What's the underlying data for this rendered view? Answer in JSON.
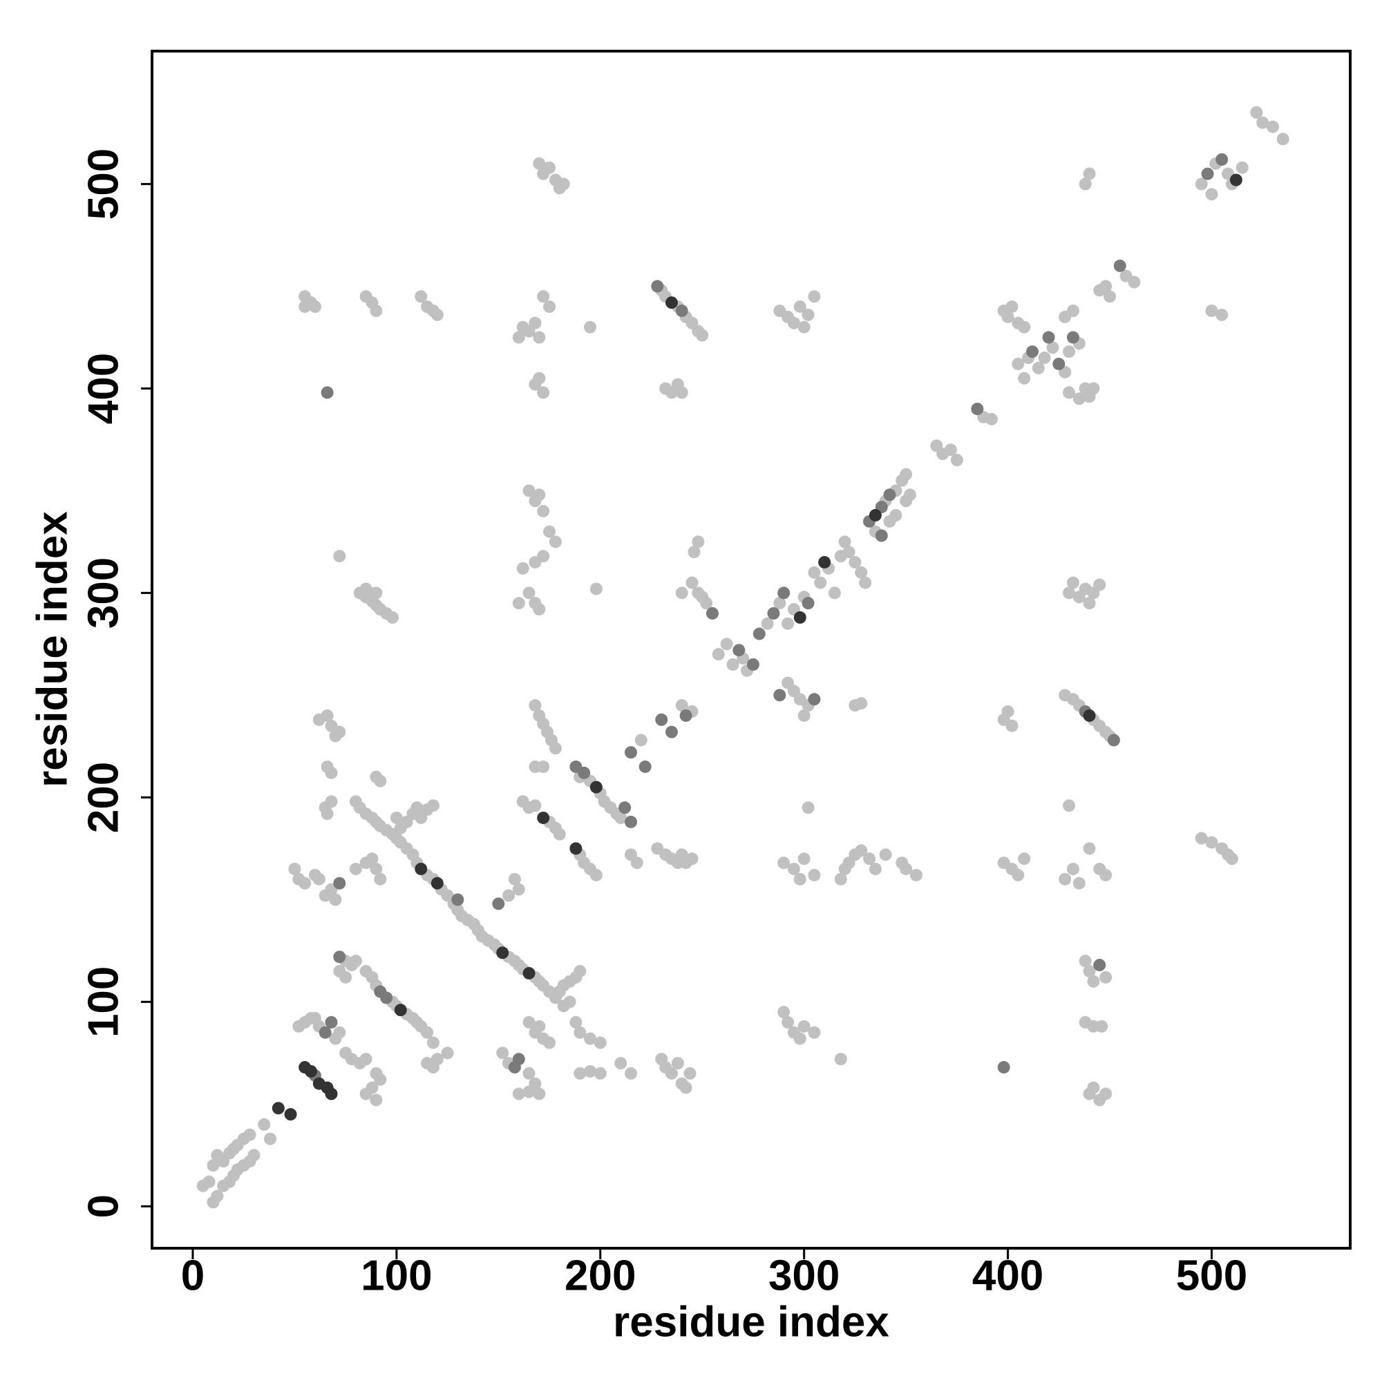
{
  "chart_data": {
    "type": "scatter",
    "xlabel": "residue index",
    "ylabel": "residue index",
    "xlim": [
      -20,
      568
    ],
    "ylim": [
      -20.5,
      565
    ],
    "xticks": [
      0,
      100,
      200,
      300,
      400,
      500
    ],
    "yticks": [
      0,
      100,
      200,
      300,
      400,
      500
    ],
    "series": [
      {
        "color": "#c0c0c0",
        "x": [
          5,
          8,
          10,
          12,
          15,
          18,
          20,
          22,
          25,
          28,
          10,
          12,
          15,
          18,
          20,
          22,
          25,
          28,
          30,
          35,
          38,
          52,
          55,
          58,
          60,
          62,
          70,
          72,
          75,
          78,
          82,
          85,
          90,
          92,
          85,
          88,
          90,
          50,
          52,
          55,
          60,
          62,
          65,
          68,
          70,
          66,
          62,
          68,
          70,
          72,
          66,
          68,
          65,
          66,
          68,
          72,
          75,
          78,
          72,
          75,
          80,
          85,
          88,
          90,
          98,
          100,
          105,
          108,
          110,
          112,
          115,
          118,
          115,
          120,
          125,
          118,
          82,
          85,
          88,
          90,
          92,
          95,
          98,
          85,
          90,
          80,
          82,
          85,
          88,
          90,
          92,
          95,
          98,
          100,
          102,
          105,
          108,
          110,
          115,
          118,
          122,
          125,
          128,
          130,
          132,
          135,
          138,
          140,
          142,
          145,
          148,
          150,
          155,
          158,
          160,
          162,
          168,
          170,
          172,
          175,
          178,
          100,
          102,
          105,
          108,
          110,
          112,
          115,
          118,
          90,
          92,
          80,
          85,
          88,
          90,
          92,
          55,
          58,
          60,
          55,
          85,
          88,
          90,
          112,
          115,
          118,
          120,
          160,
          162,
          165,
          168,
          170,
          172,
          175,
          170,
          172,
          168,
          165,
          168,
          170,
          172,
          175,
          178,
          172,
          168,
          162,
          165,
          168,
          170,
          160,
          170,
          172,
          175,
          178,
          180,
          182,
          168,
          170,
          172,
          174,
          176,
          178,
          172,
          168,
          162,
          165,
          168,
          175,
          178,
          180,
          158,
          160,
          155,
          152,
          155,
          165,
          168,
          160,
          165,
          170,
          165,
          168,
          170,
          172,
          175,
          180,
          182,
          185,
          188,
          190,
          185,
          182,
          188,
          190,
          195,
          200,
          190,
          195,
          200,
          202,
          205,
          208,
          210,
          190,
          192,
          195,
          198,
          195,
          198,
          190,
          195,
          200,
          220,
          240,
          245,
          215,
          218,
          210,
          215,
          230,
          232,
          238,
          242,
          245,
          248,
          250,
          232,
          235,
          238,
          240,
          228,
          232,
          235,
          238,
          240,
          242,
          245,
          230,
          232,
          235,
          238,
          240,
          242,
          244,
          240,
          245,
          248,
          250,
          252,
          248,
          246,
          258,
          262,
          265,
          270,
          272,
          282,
          288,
          292,
          295,
          300,
          292,
          295,
          298,
          300,
          302,
          288,
          292,
          295,
          298,
          300,
          302,
          305,
          290,
          292,
          295,
          298,
          300,
          305,
          318,
          290,
          295,
          298,
          300,
          305,
          302,
          305,
          308,
          312,
          315,
          318,
          320,
          322,
          325,
          328,
          330,
          318,
          320,
          322,
          325,
          328,
          332,
          335,
          340,
          325,
          328,
          340,
          345,
          348,
          350,
          335,
          342,
          345,
          350,
          352,
          348,
          350,
          355,
          365,
          368,
          372,
          375,
          388,
          392,
          398,
          400,
          402,
          398,
          402,
          405,
          408,
          398,
          400,
          402,
          405,
          408,
          405,
          408,
          410,
          415,
          418,
          422,
          428,
          430,
          435,
          428,
          432,
          430,
          435,
          438,
          440,
          442,
          430,
          432,
          435,
          438,
          440,
          442,
          445,
          428,
          432,
          435,
          442,
          445,
          448,
          450,
          430,
          428,
          432,
          435,
          440,
          445,
          448,
          438,
          440,
          442,
          448,
          438,
          442,
          446,
          440,
          442,
          445,
          448,
          440,
          438,
          445,
          448,
          450,
          458,
          462,
          495,
          500,
          502,
          508,
          510,
          515,
          500,
          505,
          495,
          500,
          505,
          508,
          510,
          522,
          525,
          530,
          535
        ],
        "values": [
          10,
          12,
          20,
          25,
          22,
          26,
          28,
          30,
          33,
          35,
          2,
          5,
          10,
          12,
          15,
          18,
          20,
          22,
          25,
          40,
          33,
          88,
          90,
          92,
          92,
          88,
          82,
          85,
          75,
          72,
          70,
          72,
          65,
          62,
          55,
          58,
          52,
          165,
          160,
          158,
          162,
          160,
          152,
          155,
          150,
          240,
          238,
          235,
          230,
          232,
          215,
          212,
          195,
          192,
          198,
          318,
          120,
          118,
          115,
          112,
          120,
          115,
          112,
          108,
          100,
          98,
          94,
          92,
          90,
          88,
          85,
          80,
          70,
          72,
          75,
          68,
          300,
          298,
          296,
          294,
          292,
          290,
          288,
          302,
          300,
          198,
          195,
          192,
          190,
          188,
          186,
          184,
          182,
          180,
          178,
          175,
          172,
          168,
          162,
          160,
          155,
          152,
          148,
          145,
          142,
          140,
          138,
          135,
          132,
          130,
          128,
          126,
          122,
          120,
          118,
          116,
          112,
          110,
          108,
          105,
          102,
          190,
          185,
          188,
          192,
          195,
          190,
          194,
          196,
          210,
          208,
          165,
          168,
          170,
          165,
          160,
          445,
          442,
          440,
          440,
          445,
          442,
          438,
          445,
          440,
          438,
          436,
          425,
          430,
          428,
          432,
          425,
          445,
          440,
          405,
          398,
          402,
          350,
          345,
          348,
          340,
          330,
          325,
          318,
          315,
          312,
          300,
          295,
          292,
          295,
          510,
          505,
          508,
          502,
          498,
          500,
          245,
          240,
          236,
          232,
          228,
          224,
          215,
          215,
          198,
          195,
          196,
          188,
          185,
          182,
          160,
          155,
          152,
          75,
          70,
          65,
          60,
          55,
          56,
          55,
          90,
          85,
          88,
          82,
          80,
          105,
          108,
          110,
          112,
          115,
          100,
          98,
          90,
          85,
          82,
          80,
          210,
          208,
          202,
          198,
          195,
          192,
          190,
          172,
          168,
          165,
          162,
          430,
          302,
          65,
          66,
          65,
          228,
          245,
          242,
          172,
          168,
          70,
          65,
          448,
          445,
          440,
          435,
          432,
          428,
          426,
          400,
          398,
          402,
          398,
          175,
          172,
          170,
          168,
          172,
          168,
          170,
          72,
          68,
          65,
          70,
          60,
          58,
          65,
          300,
          305,
          300,
          298,
          295,
          325,
          320,
          270,
          275,
          265,
          268,
          262,
          285,
          295,
          285,
          292,
          298,
          256,
          252,
          248,
          240,
          245,
          438,
          435,
          432,
          440,
          430,
          436,
          445,
          95,
          90,
          85,
          82,
          88,
          85,
          72,
          168,
          165,
          160,
          170,
          162,
          195,
          310,
          305,
          312,
          300,
          318,
          325,
          320,
          315,
          310,
          305,
          160,
          165,
          168,
          172,
          174,
          170,
          165,
          172,
          245,
          246,
          345,
          350,
          355,
          358,
          330,
          335,
          338,
          345,
          348,
          168,
          165,
          162,
          372,
          368,
          370,
          365,
          386,
          385,
          238,
          242,
          235,
          168,
          165,
          162,
          170,
          438,
          435,
          440,
          432,
          430,
          412,
          405,
          415,
          410,
          415,
          420,
          408,
          418,
          422,
          435,
          438,
          398,
          395,
          400,
          396,
          400,
          300,
          305,
          298,
          302,
          295,
          300,
          304,
          250,
          248,
          245,
          238,
          235,
          232,
          230,
          196,
          160,
          165,
          158,
          175,
          165,
          162,
          120,
          115,
          110,
          112,
          90,
          88,
          88,
          55,
          58,
          52,
          55,
          505,
          500,
          448,
          450,
          445,
          455,
          452,
          500,
          495,
          510,
          505,
          500,
          508,
          438,
          436,
          180,
          178,
          175,
          172,
          170,
          535,
          530,
          528,
          522
        ]
      },
      {
        "color": "#7a7a7a",
        "x": [
          60,
          65,
          68,
          72,
          92,
          95,
          150,
          158,
          160,
          188,
          192,
          212,
          215,
          215,
          222,
          230,
          235,
          242,
          228,
          240,
          255,
          268,
          275,
          278,
          285,
          290,
          302,
          288,
          305,
          332,
          338,
          342,
          338,
          385,
          398,
          412,
          420,
          425,
          432,
          438,
          452,
          445,
          455,
          498,
          505,
          66,
          130,
          72
        ],
        "values": [
          64,
          85,
          90,
          158,
          105,
          102,
          148,
          68,
          72,
          215,
          212,
          195,
          188,
          222,
          215,
          238,
          232,
          240,
          450,
          438,
          290,
          272,
          265,
          280,
          290,
          300,
          295,
          250,
          248,
          335,
          342,
          348,
          328,
          390,
          68,
          418,
          425,
          412,
          425,
          242,
          228,
          118,
          460,
          505,
          512,
          398,
          150,
          122
        ]
      },
      {
        "color": "#333333",
        "x": [
          42,
          48,
          55,
          58,
          62,
          66,
          68,
          102,
          112,
          120,
          152,
          165,
          172,
          188,
          198,
          235,
          298,
          310,
          335,
          440,
          512
        ],
        "values": [
          48,
          45,
          68,
          66,
          60,
          58,
          55,
          96,
          165,
          158,
          124,
          114,
          190,
          175,
          205,
          442,
          288,
          315,
          338,
          240,
          502
        ]
      }
    ]
  }
}
